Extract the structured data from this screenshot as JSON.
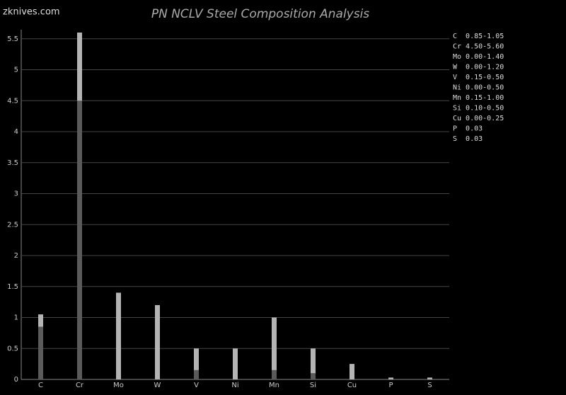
{
  "watermark": "zknives.com",
  "chart_data": {
    "type": "range-bar",
    "title": "PN NCLV Steel Composition Analysis",
    "categories": [
      "C",
      "Cr",
      "Mo",
      "W",
      "V",
      "Ni",
      "Mn",
      "Si",
      "Cu",
      "P",
      "S"
    ],
    "min": [
      0.85,
      4.5,
      0,
      0,
      0.15,
      0,
      0.15,
      0.1,
      0,
      null,
      null
    ],
    "max": [
      1.05,
      5.6,
      1.4,
      1.2,
      0.5,
      0.5,
      1.0,
      0.5,
      0.25,
      0.03,
      0.03
    ],
    "min_color": "#5a5a5a",
    "max_color": "#b4b4b4",
    "legend": [
      "C  0.85-1.05",
      "Cr 4.50-5.60",
      "Mo 0.00-1.40",
      "W  0.00-1.20",
      "V  0.15-0.50",
      "Ni 0.00-0.50",
      "Mn 0.15-1.00",
      "Si 0.10-0.50",
      "Cu 0.00-0.25",
      "P  0.03",
      "S  0.03"
    ],
    "ylim": [
      0,
      5.6
    ],
    "yticks": [
      0,
      0.5,
      1,
      1.5,
      2,
      2.5,
      3,
      3.5,
      4,
      4.5,
      5,
      5.5
    ],
    "grid": true
  }
}
